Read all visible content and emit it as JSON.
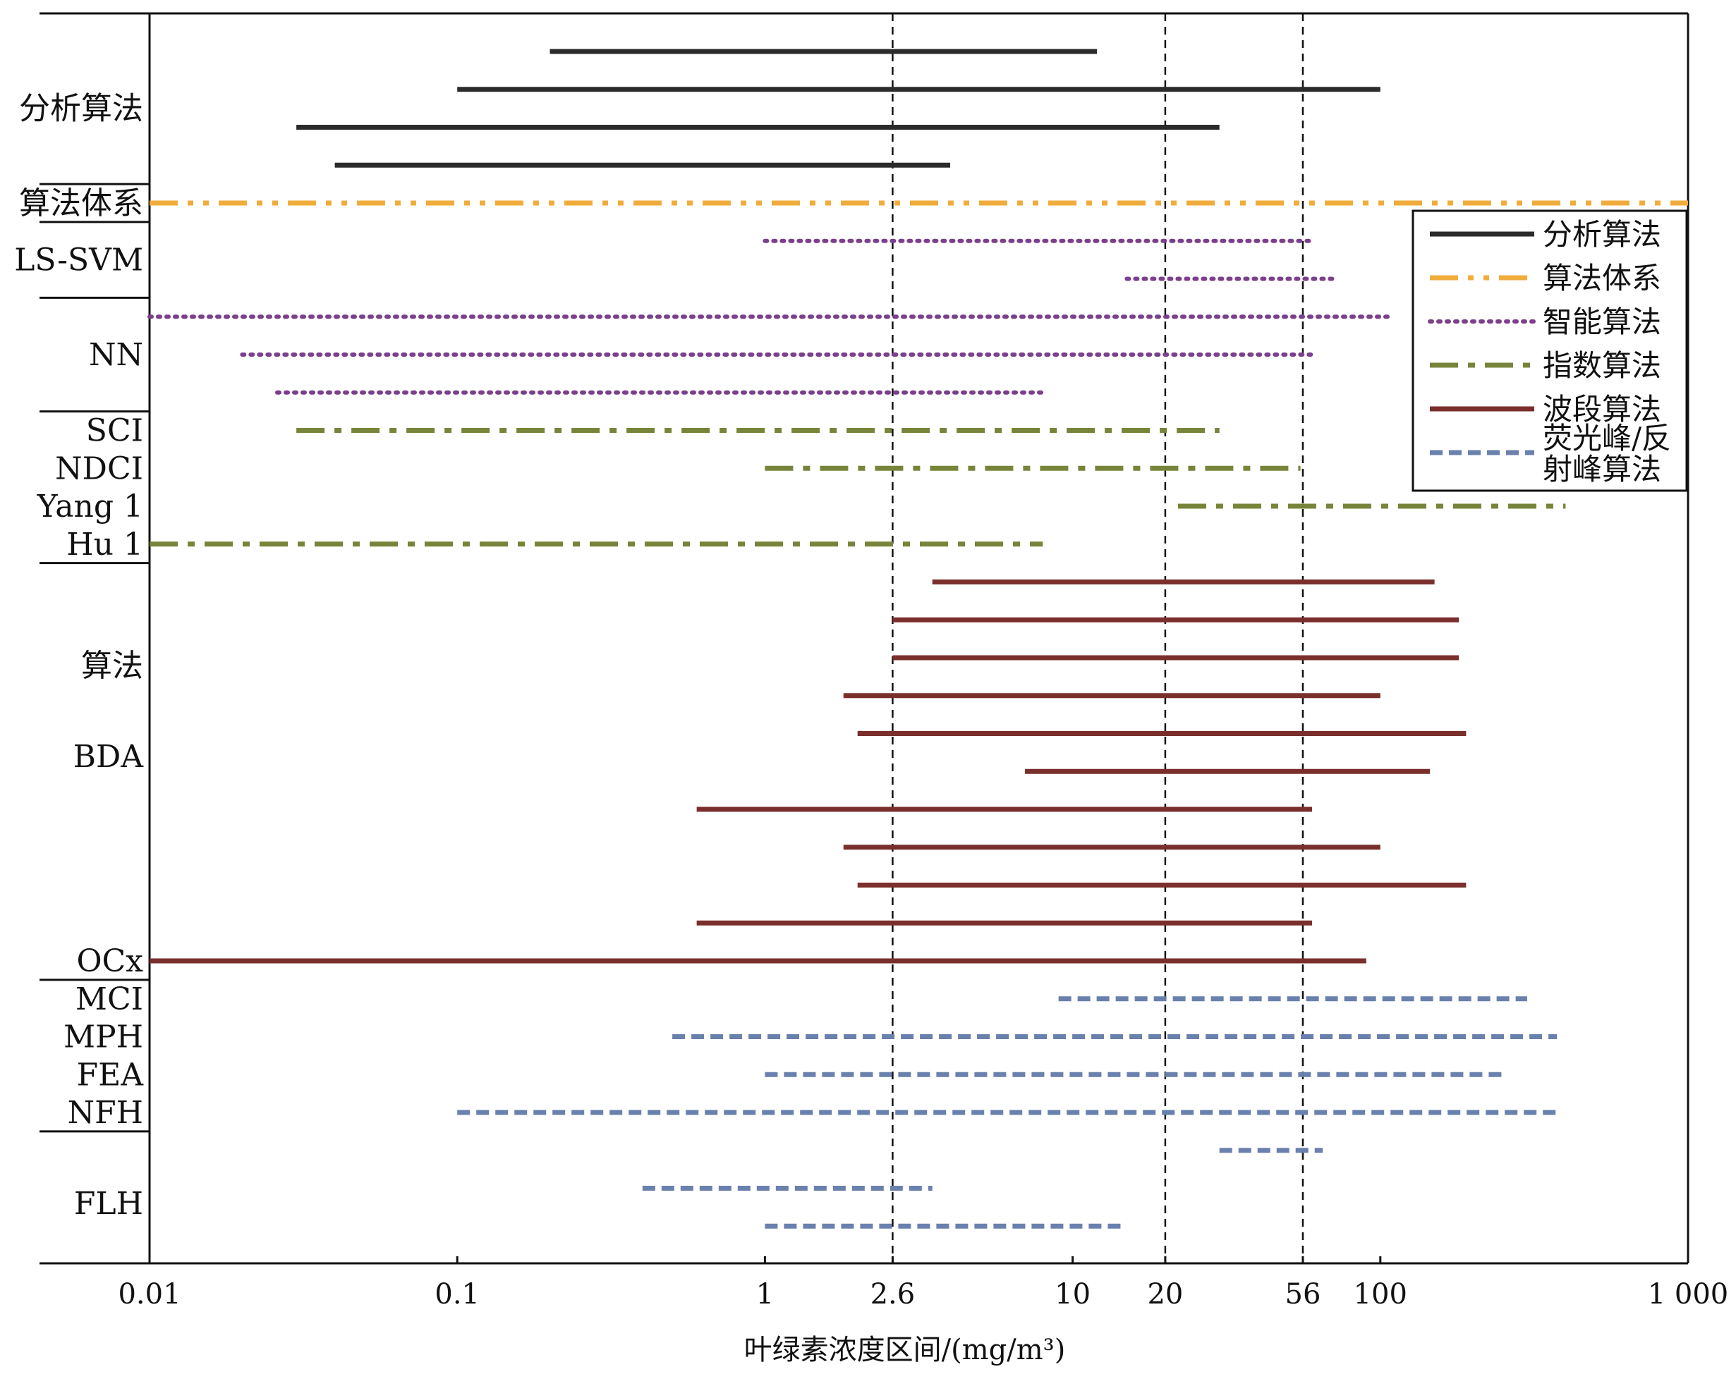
{
  "chart_data": {
    "type": "range",
    "xlabel": "叶绿素浓度区间/(mg/m³)",
    "xlim": [
      0.01,
      1000
    ],
    "x_scale": "log",
    "x_ticks": [
      {
        "value": 0.01,
        "label": "0.01"
      },
      {
        "value": 0.1,
        "label": "0.1"
      },
      {
        "value": 1,
        "label": "1"
      },
      {
        "value": 2.6,
        "label": "2.6"
      },
      {
        "value": 10,
        "label": "10"
      },
      {
        "value": 20,
        "label": "20"
      },
      {
        "value": 56,
        "label": "56"
      },
      {
        "value": 100,
        "label": "100"
      },
      {
        "value": 1000,
        "label": "1 000"
      }
    ],
    "reference_lines": [
      2.6,
      20,
      56
    ],
    "legend": {
      "placement": "top-right",
      "entries": [
        {
          "label": "分析算法",
          "series": "analytic"
        },
        {
          "label": "算法体系",
          "series": "system"
        },
        {
          "label": "智能算法",
          "series": "intelligent"
        },
        {
          "label": "指数算法",
          "series": "index"
        },
        {
          "label": "波段算法",
          "series": "band"
        },
        {
          "label": "荧光峰/反射峰算法",
          "series": "fluor",
          "lines": [
            "荧光峰/反",
            "射峰算法"
          ]
        }
      ]
    },
    "series_styles": {
      "analytic": {
        "color": "#2b2b2b",
        "dash": "solid"
      },
      "system": {
        "color": "#f0ad3c",
        "dash": "dashdotdot"
      },
      "intelligent": {
        "color": "#7b3f8c",
        "dash": "dotted"
      },
      "index": {
        "color": "#76853a",
        "dash": "dashdot"
      },
      "band": {
        "color": "#7a2f2c",
        "dash": "solid"
      },
      "fluor": {
        "color": "#6a80ad",
        "dash": "dashed"
      }
    },
    "rows": [
      {
        "series": "analytic",
        "x": [
          0.2,
          12
        ]
      },
      {
        "series": "analytic",
        "x": [
          0.1,
          100
        ]
      },
      {
        "series": "analytic",
        "x": [
          0.03,
          30
        ]
      },
      {
        "series": "analytic",
        "x": [
          0.04,
          4
        ]
      },
      {
        "series": "system",
        "x": [
          0.01,
          1000
        ]
      },
      {
        "series": "intelligent",
        "x": [
          1,
          60
        ]
      },
      {
        "series": "intelligent",
        "x": [
          15,
          70
        ]
      },
      {
        "series": "intelligent",
        "x": [
          0.01,
          110
        ]
      },
      {
        "series": "intelligent",
        "x": [
          0.02,
          60
        ]
      },
      {
        "series": "intelligent",
        "x": [
          0.026,
          8
        ]
      },
      {
        "series": "index",
        "x": [
          0.03,
          30
        ]
      },
      {
        "series": "index",
        "x": [
          1,
          55
        ]
      },
      {
        "series": "index",
        "x": [
          22,
          400
        ]
      },
      {
        "series": "index",
        "x": [
          0.01,
          8
        ]
      },
      {
        "series": "band",
        "x": [
          3.5,
          150
        ]
      },
      {
        "series": "band",
        "x": [
          2.6,
          180
        ]
      },
      {
        "series": "band",
        "x": [
          2.6,
          180
        ]
      },
      {
        "series": "band",
        "x": [
          1.8,
          100
        ]
      },
      {
        "series": "band",
        "x": [
          2,
          190
        ]
      },
      {
        "series": "band",
        "x": [
          7,
          145
        ]
      },
      {
        "series": "band",
        "x": [
          0.6,
          60
        ]
      },
      {
        "series": "band",
        "x": [
          1.8,
          100
        ]
      },
      {
        "series": "band",
        "x": [
          2,
          190
        ]
      },
      {
        "series": "band",
        "x": [
          0.6,
          60
        ]
      },
      {
        "series": "band",
        "x": [
          0.01,
          90
        ]
      },
      {
        "series": "fluor",
        "x": [
          9,
          300
        ]
      },
      {
        "series": "fluor",
        "x": [
          0.5,
          375
        ]
      },
      {
        "series": "fluor",
        "x": [
          1,
          250
        ]
      },
      {
        "series": "fluor",
        "x": [
          0.1,
          375
        ]
      },
      {
        "series": "fluor",
        "x": [
          30,
          65
        ]
      },
      {
        "series": "fluor",
        "x": [
          0.4,
          3.5
        ]
      },
      {
        "series": "fluor",
        "x": [
          1,
          15
        ]
      }
    ],
    "row_labels": [
      {
        "text": "分析算法",
        "row": 1.5
      },
      {
        "text": "算法体系",
        "row": 4
      },
      {
        "text": "LS-SVM",
        "row": 5.5
      },
      {
        "text": "NN",
        "row": 8
      },
      {
        "text": "SCI",
        "row": 10
      },
      {
        "text": "NDCI",
        "row": 11
      },
      {
        "text": "Yang 1",
        "row": 12
      },
      {
        "text": "Hu 1",
        "row": 13
      },
      {
        "text": "算法",
        "row": 16.2
      },
      {
        "text": "BDA",
        "row": 18.6
      },
      {
        "text": "OCx",
        "row": 24
      },
      {
        "text": "MCI",
        "row": 25
      },
      {
        "text": "MPH",
        "row": 26
      },
      {
        "text": "FEA",
        "row": 27
      },
      {
        "text": "NFH",
        "row": 28
      },
      {
        "text": "FLH",
        "row": 30.4
      }
    ],
    "group_separators_after_row": [
      3.5,
      4.5,
      6.5,
      9.5,
      13.5,
      24.5,
      28.5
    ],
    "grid": false
  }
}
